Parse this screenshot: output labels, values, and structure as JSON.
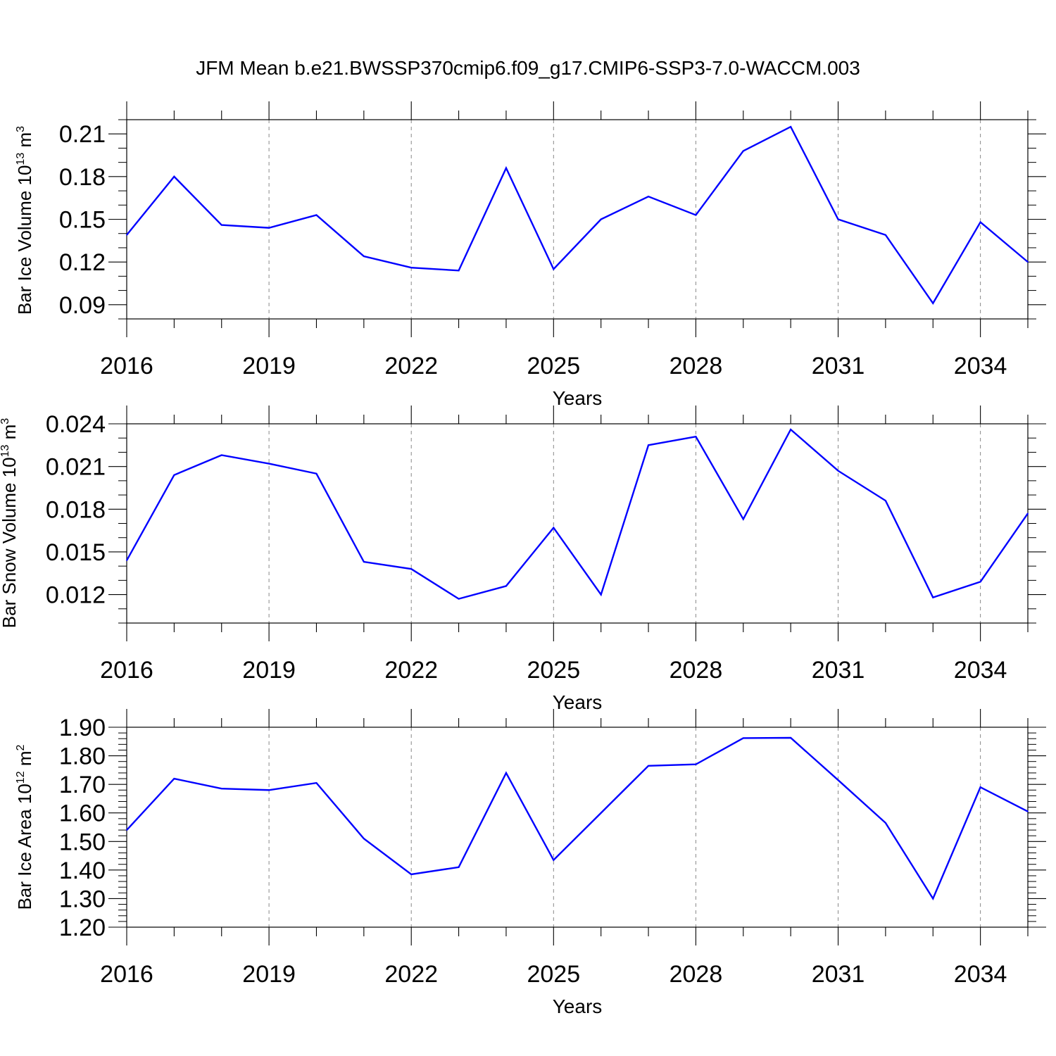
{
  "figure": {
    "title": "JFM Mean b.e21.BWSSP370cmip6.f09_g17.CMIP6-SSP3-7.0-WACCM.003",
    "line_color": "#0000ff",
    "grid_color": "#888888"
  },
  "chart_data": [
    {
      "type": "line",
      "title": "",
      "xlabel": "Years",
      "ylabel": {
        "prefix": "Bar Ice Volume 10",
        "sup": "13",
        "unit": " m",
        "unit_sup": "3"
      },
      "x": [
        2016,
        2017,
        2018,
        2019,
        2020,
        2021,
        2022,
        2023,
        2024,
        2025,
        2026,
        2027,
        2028,
        2029,
        2030,
        2031,
        2032,
        2033,
        2034,
        2035
      ],
      "series": [
        {
          "name": "",
          "values": [
            0.139,
            0.18,
            0.146,
            0.144,
            0.153,
            0.124,
            0.116,
            0.114,
            0.186,
            0.115,
            0.15,
            0.166,
            0.153,
            0.198,
            0.215,
            0.15,
            0.139,
            0.091,
            0.148,
            0.12
          ]
        }
      ],
      "xlim": [
        2016,
        2035
      ],
      "ylim": [
        0.08,
        0.22
      ],
      "xticks": [
        2016,
        2019,
        2022,
        2025,
        2028,
        2031,
        2034
      ],
      "xtick_labels": [
        "2016",
        "2019",
        "2022",
        "2025",
        "2028",
        "2031",
        "2034"
      ],
      "yticks": [
        0.09,
        0.12,
        0.15,
        0.18,
        0.21
      ],
      "ytick_labels": [
        "0.09",
        "0.12",
        "0.15",
        "0.18",
        "0.21"
      ],
      "yminor_step": 0.01,
      "grid": "vertical dashed at major x ticks"
    },
    {
      "type": "line",
      "title": "",
      "xlabel": "Years",
      "ylabel": {
        "prefix": "Bar Snow Volume 10",
        "sup": "13",
        "unit": " m",
        "unit_sup": "3"
      },
      "x": [
        2016,
        2017,
        2018,
        2019,
        2020,
        2021,
        2022,
        2023,
        2024,
        2025,
        2026,
        2027,
        2028,
        2029,
        2030,
        2031,
        2032,
        2033,
        2034,
        2035
      ],
      "series": [
        {
          "name": "",
          "values": [
            0.0144,
            0.0204,
            0.0218,
            0.0212,
            0.0205,
            0.0143,
            0.0138,
            0.0117,
            0.0126,
            0.0167,
            0.012,
            0.0225,
            0.0231,
            0.0173,
            0.0236,
            0.0207,
            0.0186,
            0.0118,
            0.0129,
            0.0177
          ]
        }
      ],
      "xlim": [
        2016,
        2035
      ],
      "ylim": [
        0.01,
        0.024
      ],
      "xticks": [
        2016,
        2019,
        2022,
        2025,
        2028,
        2031,
        2034
      ],
      "xtick_labels": [
        "2016",
        "2019",
        "2022",
        "2025",
        "2028",
        "2031",
        "2034"
      ],
      "yticks": [
        0.012,
        0.015,
        0.018,
        0.021,
        0.024
      ],
      "ytick_labels": [
        "0.012",
        "0.015",
        "0.018",
        "0.021",
        "0.024"
      ],
      "yminor_step": 0.001,
      "grid": "vertical dashed at major x ticks"
    },
    {
      "type": "line",
      "title": "",
      "xlabel": "Years",
      "ylabel": {
        "prefix": "Bar Ice Area 10",
        "sup": "12",
        "unit": " m",
        "unit_sup": "2"
      },
      "x": [
        2016,
        2017,
        2018,
        2019,
        2020,
        2021,
        2022,
        2023,
        2024,
        2025,
        2026,
        2027,
        2028,
        2029,
        2030,
        2031,
        2032,
        2033,
        2034,
        2035
      ],
      "series": [
        {
          "name": "",
          "values": [
            1.54,
            1.72,
            1.685,
            1.68,
            1.705,
            1.51,
            1.385,
            1.41,
            1.74,
            1.435,
            1.6,
            1.765,
            1.77,
            1.862,
            1.863,
            1.715,
            1.565,
            1.3,
            1.69,
            1.605
          ]
        }
      ],
      "xlim": [
        2016,
        2035
      ],
      "ylim": [
        1.2,
        1.9
      ],
      "xticks": [
        2016,
        2019,
        2022,
        2025,
        2028,
        2031,
        2034
      ],
      "xtick_labels": [
        "2016",
        "2019",
        "2022",
        "2025",
        "2028",
        "2031",
        "2034"
      ],
      "yticks": [
        1.2,
        1.3,
        1.4,
        1.5,
        1.6,
        1.7,
        1.8,
        1.9
      ],
      "ytick_labels": [
        "1.20",
        "1.30",
        "1.40",
        "1.50",
        "1.60",
        "1.70",
        "1.80",
        "1.90"
      ],
      "yminor_step": 0.02,
      "grid": "vertical dashed at major x ticks"
    }
  ]
}
